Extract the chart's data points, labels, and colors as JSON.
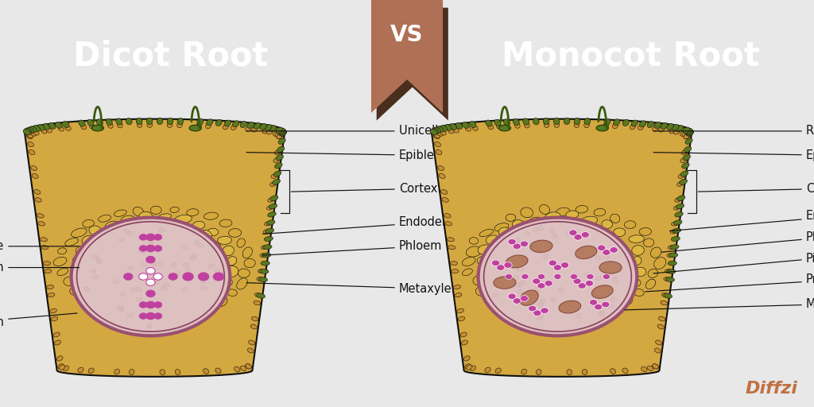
{
  "title_left": "Dicot Root",
  "title_right": "Monocot Root",
  "vs_text": "VS",
  "header_bg_left": "#383838",
  "header_bg_right": "#484848",
  "vs_banner_color": "#b07055",
  "vs_banner_shadow": "#4a2e1e",
  "body_bg": "#e8e8e8",
  "panel_bg": "#f5f5f5",
  "title_color": "#ffffff",
  "title_fontsize": 30,
  "label_fontsize": 10.5,
  "diffzi_color": "#c07040",
  "cortex_color": "#d4a840",
  "cortex_edge": "#1a1a1a",
  "epi_color": "#b89030",
  "green_color": "#5a7820",
  "stele_fill": "#ddc0c0",
  "stele_ring": "#9a5070",
  "dot_color": "#c040a0",
  "brown_dot": "#a06040"
}
